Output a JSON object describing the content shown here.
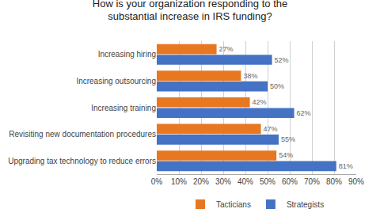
{
  "chart_data": {
    "type": "bar",
    "orientation": "horizontal",
    "title": "How is your organization responding to the\nsubstantial increase in IRS funding?",
    "categories": [
      "Increasing hiring",
      "Increasing outsourcing",
      "Increasing training",
      "Revisiting new documentation procedures",
      "Upgrading tax technology to reduce errors"
    ],
    "series": [
      {
        "name": "Tacticians",
        "color": "#E87722",
        "values": [
          27,
          38,
          42,
          47,
          54
        ],
        "value_labels": [
          "27%",
          "38%",
          "42%",
          "47%",
          "54%"
        ]
      },
      {
        "name": "Strategists",
        "color": "#4472C4",
        "values": [
          52,
          50,
          62,
          55,
          81
        ],
        "value_labels": [
          "52%",
          "50%",
          "62%",
          "55%",
          "81%"
        ]
      }
    ],
    "xlim": [
      0,
      90
    ],
    "xticks": [
      {
        "value": 0,
        "label": "0%"
      },
      {
        "value": 10,
        "label": "10%"
      },
      {
        "value": 20,
        "label": "20%"
      },
      {
        "value": 30,
        "label": "30%"
      },
      {
        "value": 40,
        "label": "40%"
      },
      {
        "value": 50,
        "label": "50%"
      },
      {
        "value": 60,
        "label": "60%"
      },
      {
        "value": 70,
        "label": "70%"
      },
      {
        "value": 80,
        "label": "80%"
      },
      {
        "value": 90,
        "label": "90%"
      }
    ],
    "grid": true,
    "data_labels": true,
    "legend": "bottom"
  }
}
